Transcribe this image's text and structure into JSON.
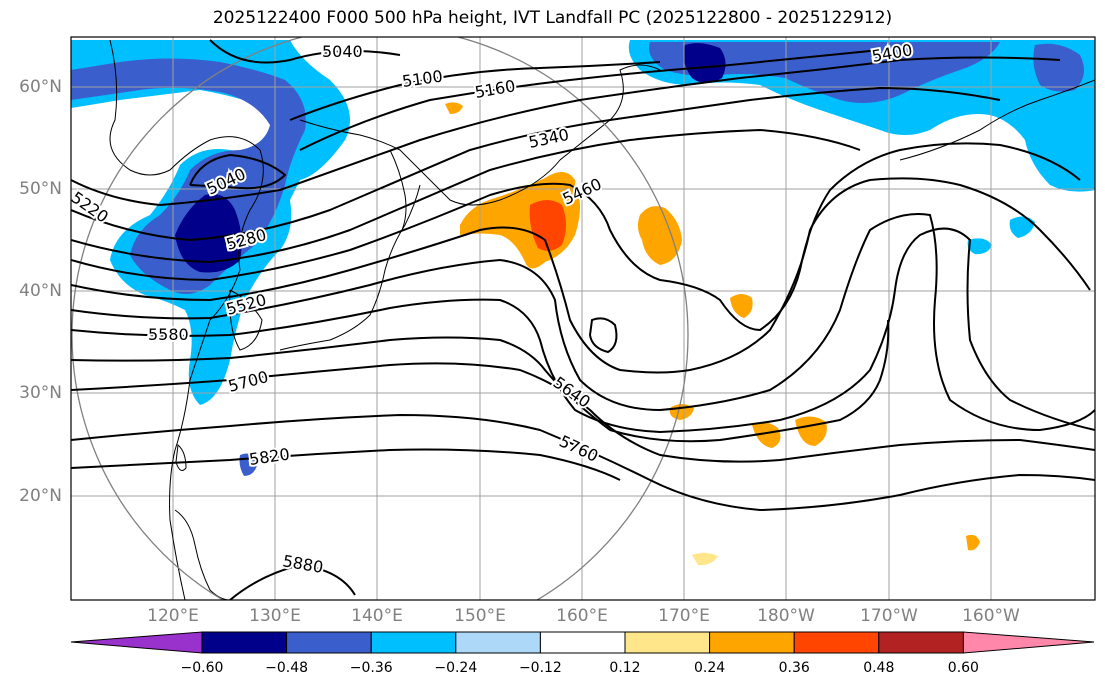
{
  "title": "2025122400 F000 500 hPa height, IVT Landfall PC (2025122800 - 2025122912)",
  "lat_labels": [
    "60°N",
    "50°N",
    "40°N",
    "30°N",
    "20°N"
  ],
  "lon_labels": [
    "120°E",
    "130°E",
    "140°E",
    "150°E",
    "160°E",
    "170°E",
    "180°W",
    "170°W",
    "160°W"
  ],
  "contour_labels": [
    "5040",
    "5100",
    "5160",
    "5340",
    "5400",
    "5220",
    "5040",
    "5280",
    "5460",
    "5520",
    "5580",
    "5700",
    "5640",
    "5760",
    "5820",
    "5880"
  ],
  "colorbar": {
    "ticks": [
      "−0.60",
      "−0.48",
      "−0.36",
      "−0.24",
      "−0.12",
      "0.12",
      "0.24",
      "0.36",
      "0.48",
      "0.60"
    ],
    "colors": [
      "#9932cc",
      "#00008b",
      "#3a5fcd",
      "#00bfff",
      "#add8f7",
      "#ffffff",
      "#ffe68a",
      "#ffa500",
      "#ff4500",
      "#b22222",
      "#ff88aa"
    ]
  },
  "colors": {
    "contour": "#000000",
    "grid": "#a0a0a0",
    "circle": "#808080",
    "neg_strong": "#00008b",
    "neg_mid": "#3a5fcd",
    "neg_weak": "#00bfff",
    "neg_faint": "#add8f7",
    "pos_weak": "#ffe68a",
    "pos_mid": "#ffa500",
    "pos_strong": "#ff4500"
  }
}
